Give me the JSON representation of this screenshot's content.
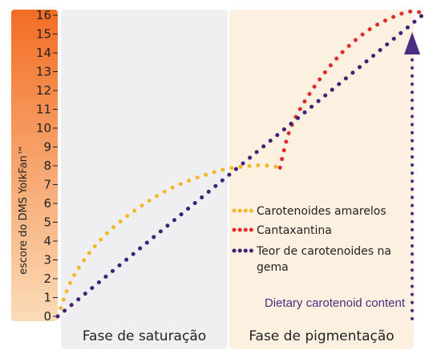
{
  "chart_data": {
    "type": "line",
    "ylabel": "escore do DMS YolkFan™",
    "ylim": [
      0,
      16
    ],
    "yticks": [
      "0",
      "1",
      "2",
      "3",
      "4",
      "5",
      "6",
      "7",
      "8",
      "9",
      "10",
      "11",
      "12",
      "13",
      "14",
      "15",
      "16"
    ],
    "grid": false,
    "legend_position": "middle-right",
    "phases": [
      {
        "label": "Fase de saturação",
        "color": "#efeff2"
      },
      {
        "label": "Fase de pigmentação",
        "color": "#fcf1e0"
      }
    ],
    "series": [
      {
        "name": "Carotenoides amarelos",
        "color": "#f1b92b",
        "points": [
          [
            0,
            0
          ],
          [
            0.05,
            2.3
          ],
          [
            0.15,
            4.6
          ],
          [
            0.3,
            6.6
          ],
          [
            0.45,
            7.7
          ],
          [
            0.55,
            8.0
          ],
          [
            0.6,
            8.0
          ],
          [
            0.63,
            7.9
          ]
        ]
      },
      {
        "name": "Cantaxantina",
        "color": "#e32a2a",
        "points": [
          [
            0.63,
            7.9
          ],
          [
            0.66,
            10.0
          ],
          [
            0.72,
            12.0
          ],
          [
            0.8,
            13.9
          ],
          [
            0.88,
            15.2
          ],
          [
            0.95,
            15.9
          ],
          [
            1.0,
            16.2
          ],
          [
            1.04,
            16.1
          ]
        ]
      },
      {
        "name": "Teor de carotenoides na gema",
        "color": "#3f2274",
        "points": [
          [
            0,
            0
          ],
          [
            1.04,
            16.1
          ]
        ]
      }
    ],
    "annotation": "Dietary carotenoid content",
    "arrow_color": "#4a2d80"
  }
}
